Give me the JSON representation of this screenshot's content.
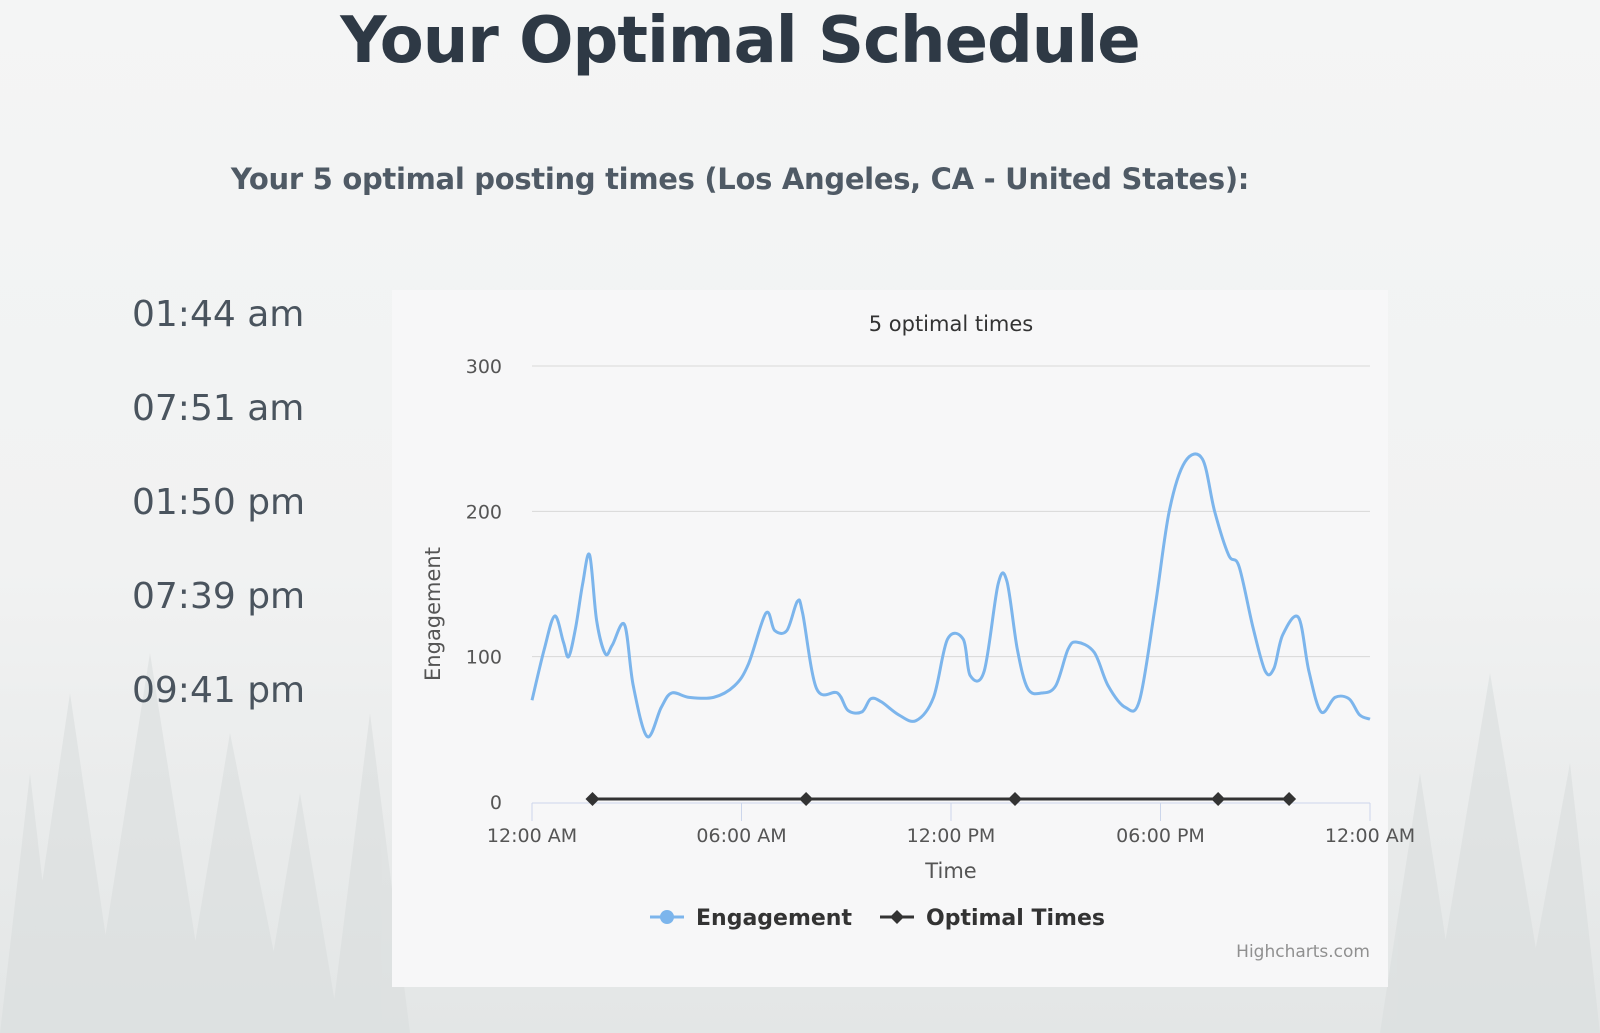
{
  "page": {
    "title": "Your Optimal Schedule",
    "subtitle": "Your 5 optimal posting times (Los Angeles, CA - United States):"
  },
  "optimal_times": [
    "01:44 am",
    "07:51 am",
    "01:50 pm",
    "07:39 pm",
    "09:41 pm"
  ],
  "chart_data": {
    "type": "line",
    "title": "5 optimal times",
    "xlabel": "Time",
    "ylabel": "Engagement",
    "ylim": [
      0,
      300
    ],
    "y_ticks": [
      0,
      100,
      200,
      300
    ],
    "x_range_hours": [
      0,
      24
    ],
    "x_ticks": [
      {
        "hour": 0,
        "label": "12:00 AM"
      },
      {
        "hour": 6,
        "label": "06:00 AM"
      },
      {
        "hour": 12,
        "label": "12:00 PM"
      },
      {
        "hour": 18,
        "label": "06:00 PM"
      },
      {
        "hour": 24,
        "label": "12:00 AM"
      }
    ],
    "grid": true,
    "legend_position": "bottom-center",
    "credits": "Highcharts.com",
    "series": [
      {
        "name": "Engagement",
        "color": "#7cb5ec",
        "marker": "circle",
        "points": [
          [
            0.0,
            70
          ],
          [
            0.35,
            105
          ],
          [
            0.65,
            128
          ],
          [
            0.9,
            110
          ],
          [
            1.05,
            100
          ],
          [
            1.25,
            120
          ],
          [
            1.45,
            150
          ],
          [
            1.65,
            170
          ],
          [
            1.85,
            125
          ],
          [
            2.1,
            102
          ],
          [
            2.3,
            108
          ],
          [
            2.65,
            122
          ],
          [
            2.9,
            80
          ],
          [
            3.3,
            45
          ],
          [
            3.7,
            65
          ],
          [
            4.0,
            75
          ],
          [
            4.5,
            72
          ],
          [
            5.2,
            72
          ],
          [
            5.8,
            80
          ],
          [
            6.2,
            95
          ],
          [
            6.7,
            130
          ],
          [
            6.95,
            118
          ],
          [
            7.3,
            118
          ],
          [
            7.6,
            138
          ],
          [
            7.75,
            130
          ],
          [
            8.15,
            78
          ],
          [
            8.75,
            75
          ],
          [
            9.05,
            63
          ],
          [
            9.45,
            62
          ],
          [
            9.7,
            71
          ],
          [
            10.0,
            69
          ],
          [
            10.5,
            60
          ],
          [
            11.0,
            56
          ],
          [
            11.5,
            72
          ],
          [
            11.9,
            112
          ],
          [
            12.35,
            112
          ],
          [
            12.55,
            87
          ],
          [
            12.95,
            90
          ],
          [
            13.35,
            150
          ],
          [
            13.6,
            152
          ],
          [
            13.9,
            105
          ],
          [
            14.2,
            78
          ],
          [
            14.6,
            75
          ],
          [
            15.0,
            80
          ],
          [
            15.35,
            105
          ],
          [
            15.6,
            110
          ],
          [
            16.1,
            103
          ],
          [
            16.5,
            80
          ],
          [
            17.0,
            65
          ],
          [
            17.4,
            70
          ],
          [
            17.85,
            135
          ],
          [
            18.25,
            200
          ],
          [
            18.7,
            234
          ],
          [
            19.2,
            236
          ],
          [
            19.55,
            200
          ],
          [
            19.95,
            170
          ],
          [
            20.25,
            162
          ],
          [
            20.65,
            120
          ],
          [
            21.0,
            90
          ],
          [
            21.25,
            92
          ],
          [
            21.5,
            115
          ],
          [
            21.95,
            127
          ],
          [
            22.25,
            90
          ],
          [
            22.6,
            62
          ],
          [
            23.0,
            72
          ],
          [
            23.4,
            71
          ],
          [
            23.7,
            60
          ],
          [
            24.0,
            57
          ]
        ]
      },
      {
        "name": "Optimal Times",
        "color": "#333333",
        "marker": "diamond",
        "points": [
          [
            1.733,
            0
          ],
          [
            7.85,
            0
          ],
          [
            13.833,
            0
          ],
          [
            19.65,
            0
          ],
          [
            21.683,
            0
          ]
        ]
      }
    ]
  },
  "colors": {
    "title": "#2e3945",
    "subtitle": "#4f5a65",
    "time_list": "#4a545e",
    "grid": "#d8d8d8",
    "axis": "#ccd6eb",
    "tick_label": "#555555"
  }
}
